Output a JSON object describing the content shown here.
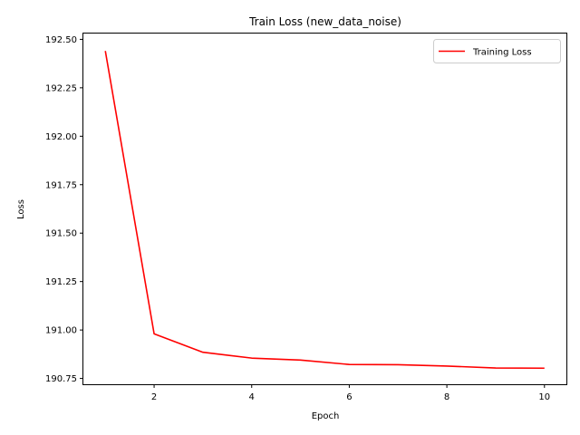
{
  "chart_data": {
    "type": "line",
    "title": "Train Loss (new_data_noise)",
    "xlabel": "Epoch",
    "ylabel": "Loss",
    "xlim": [
      0.55,
      10.45
    ],
    "ylim": [
      190.72,
      192.53
    ],
    "xticks": [
      2,
      4,
      6,
      8,
      10
    ],
    "yticks": [
      190.75,
      191.0,
      191.25,
      191.5,
      191.75,
      192.0,
      192.25,
      192.5
    ],
    "ytick_labels": [
      "190.75",
      "191.00",
      "191.25",
      "191.50",
      "191.75",
      "192.00",
      "192.25",
      "192.50"
    ],
    "grid": false,
    "legend_position": "top-right",
    "series": [
      {
        "name": "Training Loss",
        "color": "#ff0000",
        "x": [
          1,
          2,
          3,
          4,
          5,
          6,
          7,
          8,
          9,
          10
        ],
        "y": [
          192.44,
          190.98,
          190.885,
          190.855,
          190.845,
          190.822,
          190.821,
          190.814,
          190.804,
          190.803
        ]
      }
    ]
  }
}
